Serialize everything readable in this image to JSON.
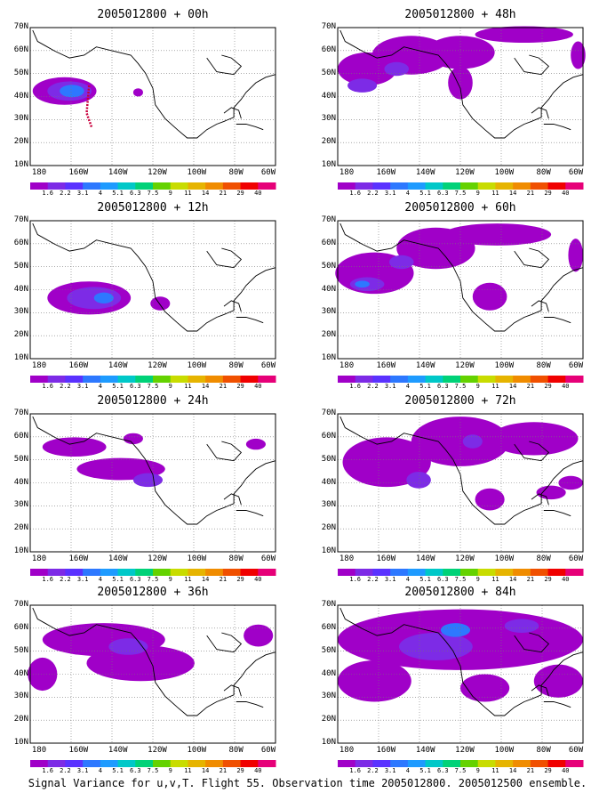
{
  "colorbar": {
    "labels": [
      "1.6",
      "2.2",
      "3.1",
      "4",
      "5.1",
      "6.3",
      "7.5",
      "9",
      "11",
      "14",
      "21",
      "29",
      "40"
    ],
    "colors": [
      "#a000c8",
      "#7d2be6",
      "#5a32ff",
      "#2d78ff",
      "#1e9bff",
      "#00c8c8",
      "#00d278",
      "#64d200",
      "#c8dc00",
      "#e6b400",
      "#f08c00",
      "#f05000",
      "#f00000",
      "#e60078"
    ]
  },
  "axes": {
    "lat_labels": [
      "70N",
      "60N",
      "50N",
      "40N",
      "30N",
      "20N",
      "10N"
    ],
    "lon_labels": [
      "180",
      "160W",
      "140W",
      "120W",
      "100W",
      "80W",
      "60W"
    ]
  },
  "panels": [
    {
      "title": "2005012800 + 00h"
    },
    {
      "title": "2005012800 + 48h"
    },
    {
      "title": "2005012800 + 12h"
    },
    {
      "title": "2005012800 + 60h"
    },
    {
      "title": "2005012800 + 24h"
    },
    {
      "title": "2005012800 + 72h"
    },
    {
      "title": "2005012800 + 36h"
    },
    {
      "title": "2005012800 + 84h"
    }
  ],
  "footer": "Signal Variance for u,v,T. Flight 55. Observation time 2005012800. 2005012500 ensemble."
}
